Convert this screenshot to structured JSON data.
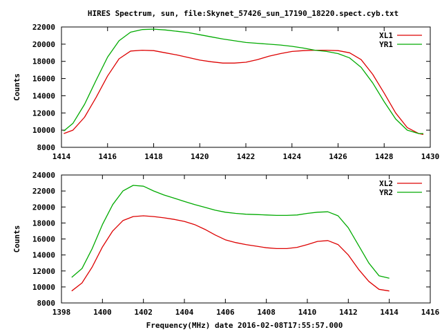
{
  "title": "HIRES Spectrum, sun, file:Skynet_57426_sun_17190_18220.spect.cyb.txt",
  "xlabel": "Frequency(MHz) date 2016-02-08T17:55:57.000",
  "colors": {
    "red": "#dd0000",
    "green": "#00aa00",
    "axis": "#000000"
  },
  "chart_data": [
    {
      "type": "line",
      "ylabel": "Counts",
      "xlim": [
        1414,
        1430
      ],
      "ylim": [
        8000,
        22000
      ],
      "xticks": [
        1414,
        1416,
        1418,
        1420,
        1422,
        1424,
        1426,
        1428,
        1430
      ],
      "yticks": [
        8000,
        10000,
        12000,
        14000,
        16000,
        18000,
        20000,
        22000
      ],
      "legend_position": "top-right",
      "series": [
        {
          "name": "XL1",
          "color": "#dd0000",
          "x": [
            1414.1,
            1414.5,
            1415.0,
            1415.5,
            1416.0,
            1416.5,
            1417.0,
            1417.5,
            1418.0,
            1418.5,
            1419.0,
            1419.5,
            1420.0,
            1420.5,
            1421.0,
            1421.5,
            1422.0,
            1422.5,
            1423.0,
            1423.5,
            1424.0,
            1424.5,
            1425.0,
            1425.5,
            1426.0,
            1426.5,
            1427.0,
            1427.5,
            1428.0,
            1428.5,
            1429.0,
            1429.5,
            1429.7
          ],
          "y": [
            9600,
            10000,
            11500,
            13800,
            16300,
            18300,
            19200,
            19300,
            19250,
            19000,
            18750,
            18450,
            18150,
            17950,
            17800,
            17800,
            17900,
            18200,
            18600,
            18900,
            19150,
            19250,
            19300,
            19300,
            19250,
            19000,
            18200,
            16500,
            14300,
            12000,
            10300,
            9600,
            9500
          ]
        },
        {
          "name": "YR1",
          "color": "#00aa00",
          "x": [
            1414.1,
            1414.5,
            1415.0,
            1415.5,
            1416.0,
            1416.5,
            1417.0,
            1417.5,
            1418.0,
            1418.5,
            1419.0,
            1419.5,
            1420.0,
            1420.5,
            1421.0,
            1421.5,
            1422.0,
            1422.5,
            1423.0,
            1423.5,
            1424.0,
            1424.5,
            1425.0,
            1425.5,
            1426.0,
            1426.5,
            1427.0,
            1427.5,
            1428.0,
            1428.5,
            1429.0,
            1429.5,
            1429.7
          ],
          "y": [
            9900,
            10800,
            13000,
            15800,
            18500,
            20400,
            21400,
            21700,
            21750,
            21650,
            21500,
            21350,
            21100,
            20850,
            20600,
            20400,
            20200,
            20100,
            20000,
            19900,
            19750,
            19550,
            19300,
            19150,
            18900,
            18400,
            17300,
            15500,
            13300,
            11300,
            10000,
            9600,
            9600
          ]
        }
      ]
    },
    {
      "type": "line",
      "ylabel": "Counts",
      "xlim": [
        1398,
        1416
      ],
      "ylim": [
        8000,
        24000
      ],
      "xticks": [
        1398,
        1400,
        1402,
        1404,
        1406,
        1408,
        1410,
        1412,
        1414,
        1416
      ],
      "yticks": [
        8000,
        10000,
        12000,
        14000,
        16000,
        18000,
        20000,
        22000,
        24000
      ],
      "legend_position": "top-right",
      "series": [
        {
          "name": "XL2",
          "color": "#dd0000",
          "x": [
            1398.5,
            1399.0,
            1399.5,
            1400.0,
            1400.5,
            1401.0,
            1401.5,
            1402.0,
            1402.5,
            1403.0,
            1403.5,
            1404.0,
            1404.5,
            1405.0,
            1405.5,
            1406.0,
            1406.5,
            1407.0,
            1407.5,
            1408.0,
            1408.5,
            1409.0,
            1409.5,
            1410.0,
            1410.5,
            1411.0,
            1411.5,
            1412.0,
            1412.5,
            1413.0,
            1413.5,
            1414.0
          ],
          "y": [
            9500,
            10500,
            12500,
            15000,
            17000,
            18300,
            18800,
            18900,
            18800,
            18650,
            18450,
            18200,
            17800,
            17200,
            16500,
            15900,
            15550,
            15300,
            15100,
            14900,
            14800,
            14800,
            14950,
            15300,
            15700,
            15800,
            15300,
            14000,
            12200,
            10700,
            9700,
            9500
          ]
        },
        {
          "name": "YR2",
          "color": "#00aa00",
          "x": [
            1398.5,
            1399.0,
            1399.5,
            1400.0,
            1400.5,
            1401.0,
            1401.5,
            1402.0,
            1402.5,
            1403.0,
            1403.5,
            1404.0,
            1404.5,
            1405.0,
            1405.5,
            1406.0,
            1406.5,
            1407.0,
            1407.5,
            1408.0,
            1408.5,
            1409.0,
            1409.5,
            1410.0,
            1410.5,
            1411.0,
            1411.5,
            1412.0,
            1412.5,
            1413.0,
            1413.5,
            1414.0
          ],
          "y": [
            11200,
            12300,
            14800,
            17800,
            20300,
            22000,
            22700,
            22600,
            22000,
            21500,
            21100,
            20700,
            20300,
            19950,
            19600,
            19350,
            19200,
            19100,
            19050,
            19000,
            18950,
            18950,
            19000,
            19200,
            19350,
            19400,
            18900,
            17400,
            15200,
            13000,
            11400,
            11100
          ]
        }
      ]
    }
  ]
}
